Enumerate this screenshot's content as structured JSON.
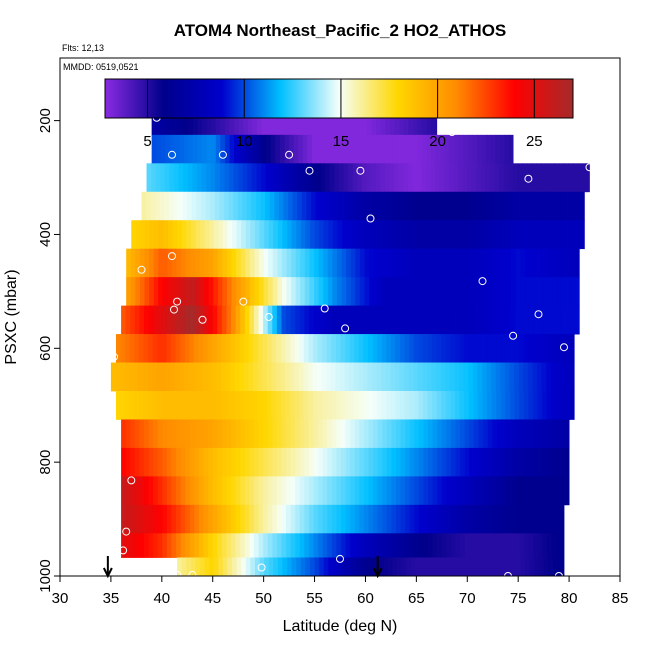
{
  "chart_data": {
    "type": "heatmap",
    "title": "ATOM4 Northeast_Pacific_2 HO2_ATHOS",
    "notes": [
      "Flts: 12,13",
      "MMDD: 0519,0521"
    ],
    "xlabel": "Latitude (deg N)",
    "ylabel": "PSXC (mbar)",
    "xlim": [
      30,
      85
    ],
    "ylim": [
      1000,
      90
    ],
    "y_reversed": true,
    "xticks": [
      30,
      35,
      40,
      45,
      50,
      55,
      60,
      65,
      70,
      75,
      80,
      85
    ],
    "yticks": [
      200,
      400,
      600,
      800,
      1000
    ],
    "colorbar": {
      "range": [
        2.8,
        27
      ],
      "ticks": [
        5,
        10,
        15,
        20,
        25
      ],
      "colors": [
        "#8a2be2",
        "#00008b",
        "#0000cd",
        "#00bfff",
        "#f5fffa",
        "#ffd700",
        "#ff8c00",
        "#ff0000",
        "#a52a2a"
      ]
    },
    "grid": false,
    "legend": "colorbar inside plot, top",
    "rows": [
      {
        "p": 200,
        "lat_min": 39,
        "lat_max": 67,
        "lat": [
          39,
          45,
          50,
          55,
          60,
          67
        ],
        "val": [
          7,
          5,
          3,
          3,
          3,
          5
        ]
      },
      {
        "p": 250,
        "lat_min": 39,
        "lat_max": 74.5,
        "lat": [
          39,
          45,
          50,
          55,
          60,
          65,
          70,
          74.5
        ],
        "val": [
          10,
          11,
          6,
          3,
          3,
          3,
          4,
          5
        ]
      },
      {
        "p": 300,
        "lat_min": 38.5,
        "lat_max": 82,
        "lat": [
          38.5,
          45,
          50,
          55,
          60,
          65,
          70,
          75,
          82
        ],
        "val": [
          13,
          11,
          9,
          6,
          4,
          3,
          4,
          5,
          5
        ]
      },
      {
        "p": 350,
        "lat_min": 38,
        "lat_max": 81.5,
        "lat": [
          38,
          45,
          50,
          55,
          60,
          65,
          70,
          75,
          81.5
        ],
        "val": [
          16,
          14,
          12,
          9,
          7,
          6,
          6,
          7,
          7
        ]
      },
      {
        "p": 400,
        "lat_min": 37,
        "lat_max": 81.5,
        "lat": [
          37,
          40,
          45,
          50,
          55,
          60,
          65,
          70,
          75,
          81.5
        ],
        "val": [
          18,
          19,
          16,
          13,
          10,
          8,
          7,
          7,
          8,
          8
        ]
      },
      {
        "p": 450,
        "lat_min": 36.5,
        "lat_max": 81,
        "lat": [
          36.5,
          40,
          45,
          50,
          55,
          60,
          65,
          70,
          75,
          81
        ],
        "val": [
          19,
          22,
          20,
          15,
          12,
          9,
          8,
          8,
          9,
          8
        ]
      },
      {
        "p": 500,
        "lat_min": 36.5,
        "lat_max": 81,
        "lat": [
          36.5,
          40,
          43,
          47,
          52,
          57,
          62,
          70,
          75,
          81
        ],
        "val": [
          20,
          24,
          26,
          21,
          15,
          11,
          8,
          8,
          9,
          9
        ]
      },
      {
        "p": 550,
        "lat_min": 36,
        "lat_max": 81,
        "lat": [
          36,
          40,
          43,
          47,
          52,
          57,
          62,
          70,
          75,
          81
        ],
        "val": [
          22,
          25,
          27,
          21,
          10,
          8,
          8,
          8,
          9,
          9
        ]
      },
      {
        "p": 600,
        "lat_min": 35.5,
        "lat_max": 80.5,
        "lat": [
          35.5,
          40,
          45,
          50,
          55,
          60,
          65,
          70,
          75,
          80.5
        ],
        "val": [
          21,
          23,
          20,
          17,
          14,
          12,
          10,
          9,
          9,
          8
        ]
      },
      {
        "p": 650,
        "lat_min": 35,
        "lat_max": 80.5,
        "lat": [
          35,
          40,
          45,
          50,
          55,
          60,
          65,
          70,
          75,
          80.5
        ],
        "val": [
          19,
          20,
          19,
          17,
          15,
          14,
          13,
          12,
          10,
          8
        ]
      },
      {
        "p": 700,
        "lat_min": 35.5,
        "lat_max": 80.5,
        "lat": [
          35.5,
          40,
          45,
          50,
          55,
          60,
          65,
          70,
          75,
          80.5
        ],
        "val": [
          18,
          19,
          19,
          18,
          16,
          15,
          14,
          12,
          10,
          8
        ]
      },
      {
        "p": 750,
        "lat_min": 36,
        "lat_max": 80,
        "lat": [
          36,
          40,
          45,
          50,
          55,
          60,
          65,
          70,
          75,
          80
        ],
        "val": [
          23,
          21,
          20,
          18,
          16,
          14,
          12,
          10,
          8,
          7
        ]
      },
      {
        "p": 800,
        "lat_min": 36,
        "lat_max": 80,
        "lat": [
          36,
          40,
          45,
          50,
          55,
          60,
          65,
          70,
          75,
          80
        ],
        "val": [
          24,
          22,
          19,
          17,
          15,
          13,
          11,
          9,
          7,
          6
        ]
      },
      {
        "p": 850,
        "lat_min": 36,
        "lat_max": 80,
        "lat": [
          36,
          40,
          45,
          50,
          55,
          60,
          65,
          70,
          75,
          80
        ],
        "val": [
          26,
          23,
          19,
          16,
          14,
          12,
          10,
          8,
          6,
          6
        ]
      },
      {
        "p": 900,
        "lat_min": 36,
        "lat_max": 79.5,
        "lat": [
          36,
          40,
          45,
          50,
          55,
          60,
          65,
          70,
          75,
          79.5
        ],
        "val": [
          26,
          24,
          20,
          16,
          13,
          11,
          9,
          7,
          6,
          6
        ]
      },
      {
        "p": 950,
        "lat_min": 36,
        "lat_max": 79.5,
        "lat": [
          36,
          40,
          45,
          50,
          55,
          60,
          65,
          70,
          75,
          79.5
        ],
        "val": [
          25,
          23,
          18,
          14,
          11,
          8,
          6,
          5,
          5,
          6
        ]
      },
      {
        "p": 985,
        "lat_min": 41.5,
        "lat_max": 79.5,
        "lat": [
          41.5,
          45,
          50,
          55,
          60,
          65,
          70,
          75,
          79.5
        ],
        "val": [
          16,
          18,
          13,
          10,
          6,
          5,
          5,
          5,
          6
        ]
      }
    ],
    "markers": [
      {
        "lat": 39.5,
        "p": 195
      },
      {
        "lat": 63.5,
        "p": 188
      },
      {
        "lat": 66,
        "p": 186
      },
      {
        "lat": 68.5,
        "p": 220
      },
      {
        "lat": 41,
        "p": 260
      },
      {
        "lat": 46,
        "p": 260
      },
      {
        "lat": 52.5,
        "p": 260
      },
      {
        "lat": 54.5,
        "p": 288
      },
      {
        "lat": 59.5,
        "p": 288
      },
      {
        "lat": 76,
        "p": 302
      },
      {
        "lat": 82,
        "p": 282
      },
      {
        "lat": 60.5,
        "p": 372
      },
      {
        "lat": 41,
        "p": 438
      },
      {
        "lat": 38,
        "p": 462
      },
      {
        "lat": 71.5,
        "p": 482
      },
      {
        "lat": 41.5,
        "p": 518
      },
      {
        "lat": 41.2,
        "p": 532
      },
      {
        "lat": 44,
        "p": 550
      },
      {
        "lat": 48,
        "p": 518
      },
      {
        "lat": 50.5,
        "p": 545
      },
      {
        "lat": 56,
        "p": 530
      },
      {
        "lat": 58,
        "p": 565
      },
      {
        "lat": 77,
        "p": 540
      },
      {
        "lat": 74.5,
        "p": 578
      },
      {
        "lat": 79.5,
        "p": 598
      },
      {
        "lat": 35.3,
        "p": 615
      },
      {
        "lat": 37,
        "p": 832
      },
      {
        "lat": 36.5,
        "p": 922
      },
      {
        "lat": 36.2,
        "p": 955
      },
      {
        "lat": 41.5,
        "p": 998
      },
      {
        "lat": 43,
        "p": 998
      },
      {
        "lat": 49.8,
        "p": 985
      },
      {
        "lat": 57.5,
        "p": 970
      },
      {
        "lat": 74,
        "p": 1000
      },
      {
        "lat": 79,
        "p": 1000
      }
    ],
    "arrows": [
      {
        "lat": 34.7
      },
      {
        "lat": 61.2
      }
    ]
  }
}
